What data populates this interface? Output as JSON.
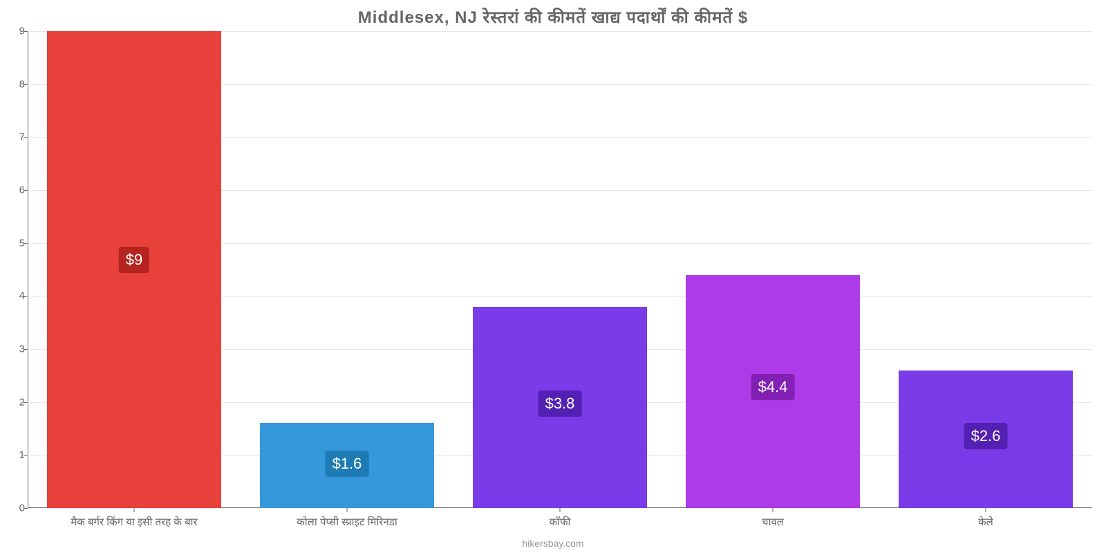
{
  "chart": {
    "type": "bar",
    "title": "Middlesex, NJ रेस्तरां की कीमतें खाद्य पदार्थों की कीमतें $",
    "title_fontsize": 24,
    "title_color": "#666666",
    "credit": "hikersbay.com",
    "credit_color": "#999999",
    "background_color": "#ffffff",
    "grid_color": "#e6e6e6",
    "axis_color": "#666666",
    "tick_font_color": "#666666",
    "tick_fontsize": 15,
    "ylim": [
      0,
      9
    ],
    "ytick_step": 1,
    "bar_width": 0.82,
    "categories": [
      "मैक बर्गर किंग या इसी तरह के बार",
      "कोला पेप्सी स्प्राइट मिरिनडा",
      "कॉफी",
      "चावल",
      "केले"
    ],
    "values": [
      9,
      1.6,
      3.8,
      4.4,
      2.6
    ],
    "value_labels": [
      "$9",
      "$1.6",
      "$3.8",
      "$4.4",
      "$2.6"
    ],
    "bar_colors": [
      "#e8403b",
      "#3498db",
      "#7a3be8",
      "#ad3be8",
      "#7a3be8"
    ],
    "label_box_colors": [
      "#b3251e",
      "#1e7bb3",
      "#5420b3",
      "#8220b3",
      "#5420b3"
    ],
    "label_fontsize": 22,
    "label_text_color": "#ffffff"
  }
}
